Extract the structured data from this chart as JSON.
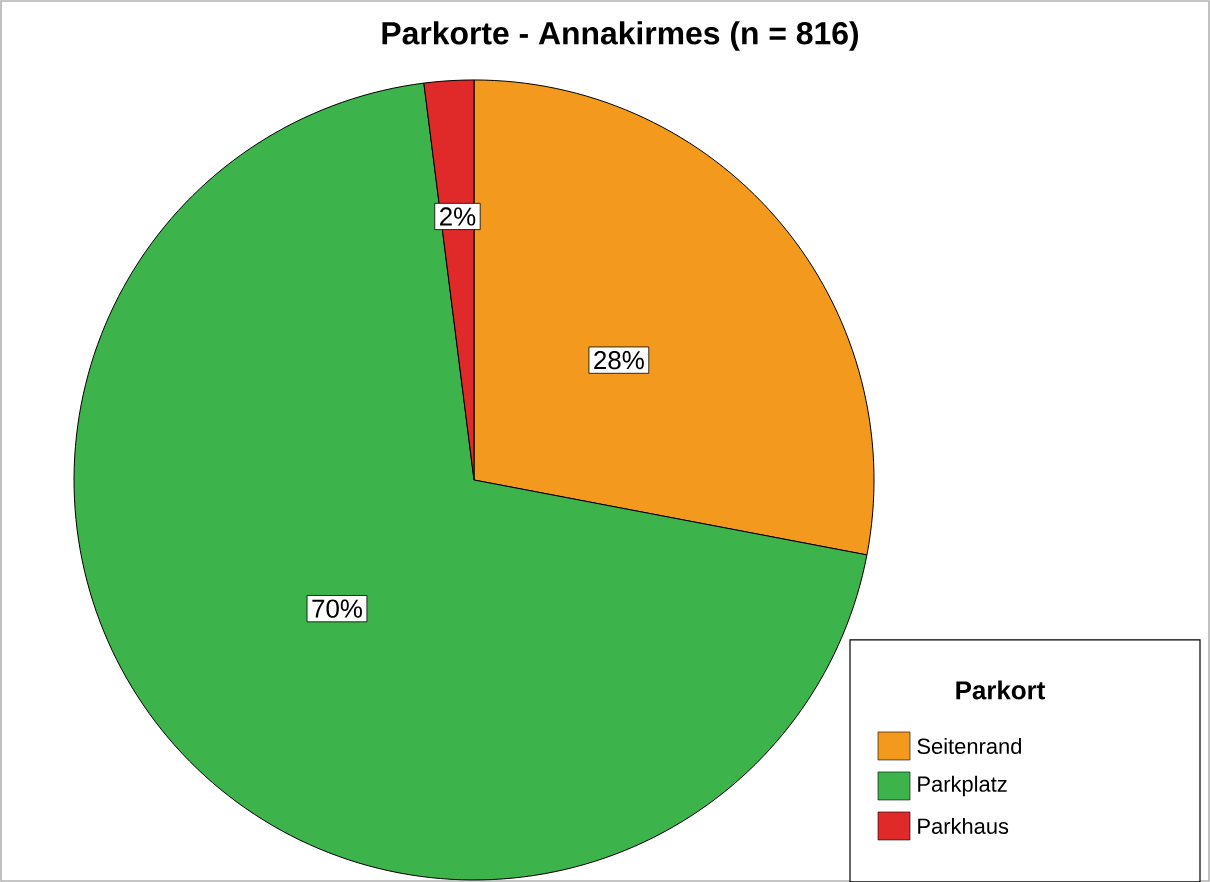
{
  "chart_data": {
    "type": "pie",
    "title": "Parkorte - Annakirmes (n = 816)",
    "legend_title": "Parkort",
    "categories": [
      "Seitenrand",
      "Parkplatz",
      "Parkhaus"
    ],
    "values": [
      28,
      70,
      2
    ],
    "colors": [
      "#f39a1e",
      "#3cb44b",
      "#e02a2a"
    ],
    "value_labels": [
      "28%",
      "70%",
      "2%"
    ],
    "legend": "bottom right"
  }
}
